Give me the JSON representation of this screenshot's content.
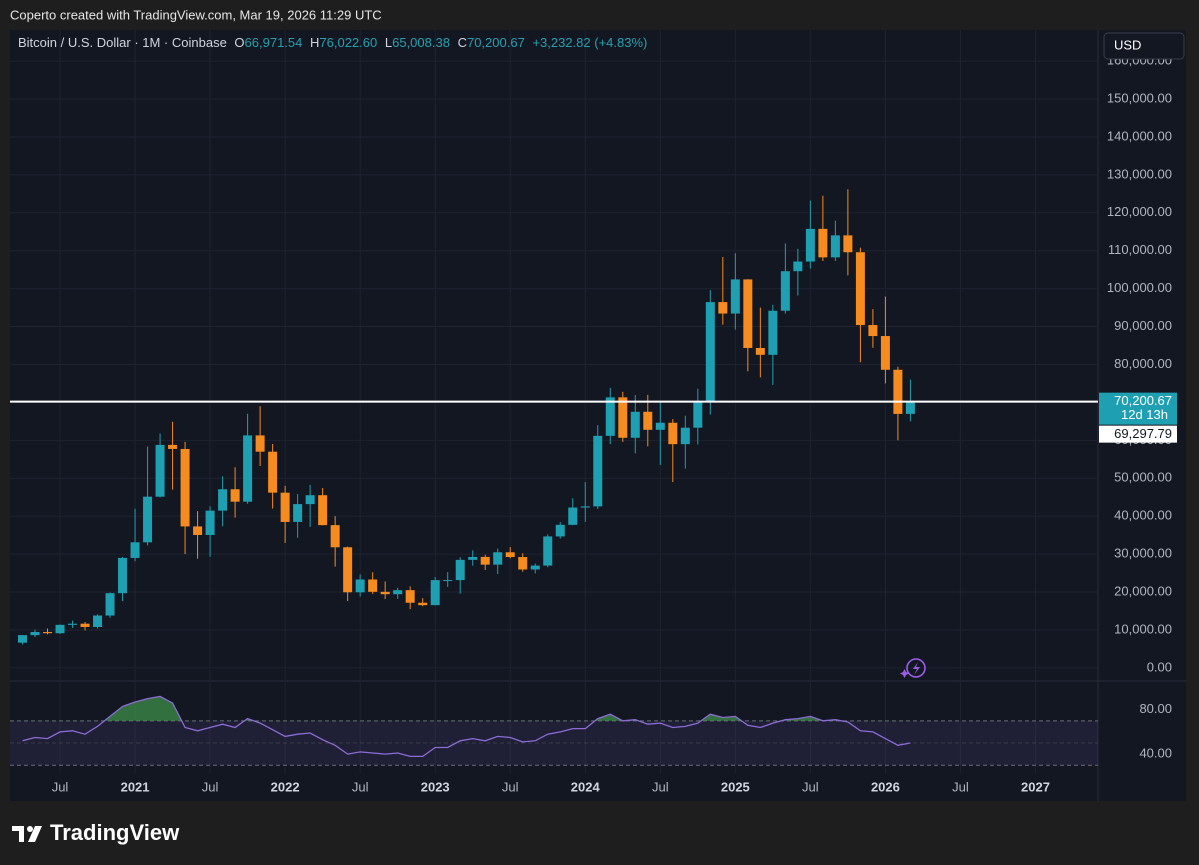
{
  "header": {
    "caption": "Coperto created with TradingView.com, Mar 19, 2026 11:29 UTC",
    "legend": {
      "symbol": "Bitcoin / U.S. Dollar · 1M · Coinbase",
      "ohlc": [
        {
          "label": "O",
          "value": "66,971.54"
        },
        {
          "label": "H",
          "value": "76,022.60"
        },
        {
          "label": "L",
          "value": "65,008.38"
        },
        {
          "label": "C",
          "value": "70,200.67"
        }
      ],
      "change": "+3,232.82 (+4.83%)"
    },
    "currency_button": "USD",
    "logo": "TradingView"
  },
  "chart_data": [
    {
      "type": "candlestick",
      "up_color": "#1fa0b2",
      "down_color": "#f68b1f",
      "grid": true,
      "x": [
        "2020-04",
        "2020-05",
        "2020-06",
        "2020-07",
        "2020-08",
        "2020-09",
        "2020-10",
        "2020-11",
        "2020-12",
        "2021-01",
        "2021-02",
        "2021-03",
        "2021-04",
        "2021-05",
        "2021-06",
        "2021-07",
        "2021-08",
        "2021-09",
        "2021-10",
        "2021-11",
        "2021-12",
        "2022-01",
        "2022-02",
        "2022-03",
        "2022-04",
        "2022-05",
        "2022-06",
        "2022-07",
        "2022-08",
        "2022-09",
        "2022-10",
        "2022-11",
        "2022-12",
        "2023-01",
        "2023-02",
        "2023-03",
        "2023-04",
        "2023-05",
        "2023-06",
        "2023-07",
        "2023-08",
        "2023-09",
        "2023-10",
        "2023-11",
        "2023-12",
        "2024-01",
        "2024-02",
        "2024-03",
        "2024-04",
        "2024-05",
        "2024-06",
        "2024-07",
        "2024-08",
        "2024-09",
        "2024-10",
        "2024-11",
        "2024-12",
        "2025-01",
        "2025-02",
        "2025-03",
        "2025-04",
        "2025-05",
        "2025-06",
        "2025-07",
        "2025-08",
        "2025-09",
        "2025-10",
        "2025-11",
        "2025-12",
        "2026-01",
        "2026-02",
        "2026-03"
      ],
      "open": [
        6640,
        8630,
        9450,
        9140,
        11340,
        11650,
        10780,
        13800,
        19700,
        28990,
        33110,
        45140,
        58790,
        57720,
        37300,
        35040,
        41460,
        47100,
        43820,
        61300,
        57000,
        46200,
        38480,
        43180,
        45530,
        37640,
        31800,
        19930,
        23300,
        20050,
        19430,
        20490,
        17170,
        16540,
        23140,
        23150,
        28480,
        29250,
        27220,
        30480,
        29230,
        25940,
        26970,
        34660,
        37720,
        42280,
        42580,
        61180,
        71330,
        60670,
        67530,
        62770,
        64630,
        58990,
        63330,
        70220,
        96450,
        93430,
        102430,
        84350,
        82550,
        94170,
        104600,
        107150,
        115760,
        108250,
        114050,
        109600,
        90400,
        87500,
        78600,
        66971.54
      ],
      "high": [
        8660,
        10070,
        10380,
        11440,
        12470,
        12080,
        14100,
        19880,
        29300,
        41950,
        58350,
        61790,
        64900,
        59600,
        41330,
        42600,
        50500,
        52900,
        67000,
        69000,
        59050,
        47990,
        45820,
        48240,
        47440,
        40000,
        31980,
        24670,
        25200,
        22800,
        21100,
        21480,
        18390,
        23960,
        25250,
        29190,
        31000,
        29830,
        31440,
        31860,
        30220,
        27490,
        35200,
        38450,
        44730,
        48970,
        64000,
        73830,
        72800,
        71950,
        71980,
        70000,
        65600,
        66500,
        73600,
        99600,
        108350,
        109350,
        102500,
        95000,
        95750,
        111900,
        110500,
        123200,
        124500,
        117900,
        126200,
        110800,
        94600,
        97900,
        79400,
        76022.6
      ],
      "low": [
        6160,
        8120,
        8830,
        8970,
        10540,
        9880,
        10380,
        13200,
        17600,
        28130,
        32300,
        44950,
        47000,
        30000,
        28800,
        29280,
        37330,
        39600,
        43280,
        53250,
        42000,
        32930,
        34320,
        37150,
        37600,
        26700,
        17600,
        18780,
        19520,
        18150,
        18190,
        15480,
        16260,
        16500,
        21350,
        19570,
        26940,
        25810,
        24750,
        28860,
        25330,
        24900,
        26540,
        34100,
        37600,
        38500,
        41900,
        59000,
        59600,
        56550,
        58400,
        53500,
        49000,
        52550,
        58900,
        66800,
        90500,
        89200,
        78200,
        76600,
        74600,
        93400,
        98200,
        105300,
        107300,
        107300,
        103500,
        80600,
        84400,
        75000,
        60000,
        65008.38
      ],
      "close": [
        8630,
        9450,
        9140,
        11340,
        11650,
        10780,
        13800,
        19700,
        28990,
        33110,
        45140,
        58790,
        57720,
        37300,
        35040,
        41460,
        47100,
        43820,
        61300,
        57000,
        46200,
        38480,
        43180,
        45530,
        37640,
        31800,
        19930,
        23300,
        20050,
        19430,
        20490,
        17170,
        16540,
        23140,
        23150,
        28480,
        29250,
        27220,
        30480,
        29230,
        25940,
        26970,
        34660,
        37720,
        42280,
        42580,
        61180,
        71330,
        60670,
        67530,
        62770,
        64630,
        58990,
        63330,
        70220,
        96450,
        93430,
        102430,
        84350,
        82550,
        94170,
        104600,
        107150,
        115760,
        108250,
        114050,
        109600,
        90400,
        87500,
        78600,
        66970,
        70200.67
      ],
      "xlim": [
        "2020-03",
        "2027-06"
      ],
      "xticks": [
        {
          "value": "2020-07",
          "label": "Jul"
        },
        {
          "value": "2021-01",
          "label": "2021"
        },
        {
          "value": "2021-07",
          "label": "Jul"
        },
        {
          "value": "2022-01",
          "label": "2022"
        },
        {
          "value": "2022-07",
          "label": "Jul"
        },
        {
          "value": "2023-01",
          "label": "2023"
        },
        {
          "value": "2023-07",
          "label": "Jul"
        },
        {
          "value": "2024-01",
          "label": "2024"
        },
        {
          "value": "2024-07",
          "label": "Jul"
        },
        {
          "value": "2025-01",
          "label": "2025"
        },
        {
          "value": "2025-07",
          "label": "Jul"
        },
        {
          "value": "2026-01",
          "label": "2026"
        },
        {
          "value": "2026-07",
          "label": "Jul"
        },
        {
          "value": "2027-01",
          "label": "2027"
        }
      ],
      "ylim": [
        -3200,
        168200
      ],
      "yticks": [
        {
          "value": 0,
          "label": "0.00"
        },
        {
          "value": 10000,
          "label": "10,000.00"
        },
        {
          "value": 20000,
          "label": "20,000.00"
        },
        {
          "value": 30000,
          "label": "30,000.00"
        },
        {
          "value": 40000,
          "label": "40,000.00"
        },
        {
          "value": 50000,
          "label": "50,000.00"
        },
        {
          "value": 60000,
          "label": "60,000.00"
        },
        {
          "value": 70000,
          "label": "70,000.00"
        },
        {
          "value": 80000,
          "label": "80,000.00"
        },
        {
          "value": 90000,
          "label": "90,000.00"
        },
        {
          "value": 100000,
          "label": "100,000.00"
        },
        {
          "value": 110000,
          "label": "110,000.00"
        },
        {
          "value": 120000,
          "label": "120,000.00"
        },
        {
          "value": 130000,
          "label": "130,000.00"
        },
        {
          "value": 140000,
          "label": "140,000.00"
        },
        {
          "value": 150000,
          "label": "150,000.00"
        },
        {
          "value": 160000,
          "label": "160,000.00"
        }
      ],
      "price_tag": {
        "value": 70200.67,
        "label": "70,200.67",
        "countdown": "12d 13h"
      },
      "second_tag": "69,297.79"
    },
    {
      "type": "line",
      "color": "#8e6cd8",
      "overbought_fill": "#3f8f4a",
      "values": [
        52,
        55,
        54,
        60,
        61,
        58,
        65,
        74,
        83,
        87,
        90,
        92,
        86,
        64,
        61,
        64,
        67,
        64,
        72,
        68,
        62,
        56,
        58,
        59,
        53,
        48,
        40,
        42,
        41,
        40,
        41,
        38,
        38,
        46,
        46,
        52,
        54,
        52,
        56,
        55,
        51,
        52,
        58,
        60,
        63,
        63,
        72,
        76,
        70,
        71,
        67,
        68,
        64,
        65,
        68,
        76,
        73,
        74,
        66,
        64,
        68,
        71,
        72,
        74,
        70,
        71,
        69,
        61,
        60,
        54,
        48,
        50
      ],
      "bands": {
        "upper": 70,
        "middle": 50,
        "lower": 30
      },
      "ylim": [
        23,
        105
      ],
      "yticks": [
        {
          "value": 80,
          "label": "80.00"
        },
        {
          "value": 40,
          "label": "40.00"
        }
      ]
    }
  ]
}
